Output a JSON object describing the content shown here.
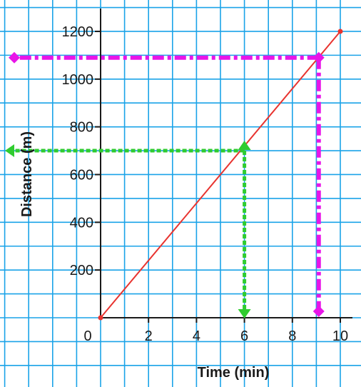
{
  "chart_data": {
    "type": "line",
    "title": "",
    "xlabel": "Time (min)",
    "ylabel": "Distance (m)",
    "xlim": [
      0,
      10
    ],
    "ylim": [
      0,
      1200
    ],
    "x_ticks": [
      {
        "value": 0,
        "label": "0"
      },
      {
        "value": 2,
        "label": "2"
      },
      {
        "value": 4,
        "label": "4"
      },
      {
        "value": 6,
        "label": "6"
      },
      {
        "value": 8,
        "label": "8"
      },
      {
        "value": 10,
        "label": "10"
      }
    ],
    "y_ticks": [
      {
        "value": 200,
        "label": "200"
      },
      {
        "value": 400,
        "label": "400"
      },
      {
        "value": 600,
        "label": "600"
      },
      {
        "value": 800,
        "label": "800"
      },
      {
        "value": 1000,
        "label": "1000"
      },
      {
        "value": 1200,
        "label": "1200"
      }
    ],
    "grid": true,
    "series": [
      {
        "x": [
          0,
          10
        ],
        "y": [
          0,
          1200
        ],
        "color": "#e8332f"
      }
    ],
    "reading_guides": [
      {
        "x": 6,
        "y": 700,
        "color": "#2fcc2f",
        "style": "dotted"
      },
      {
        "x": 9.1,
        "y": 1090,
        "color": "#e815e8",
        "style": "dash-dot"
      }
    ],
    "colors": {
      "background": "#ffffff",
      "grid": "#1aa3e8",
      "axis": "#1a1a1a"
    }
  }
}
